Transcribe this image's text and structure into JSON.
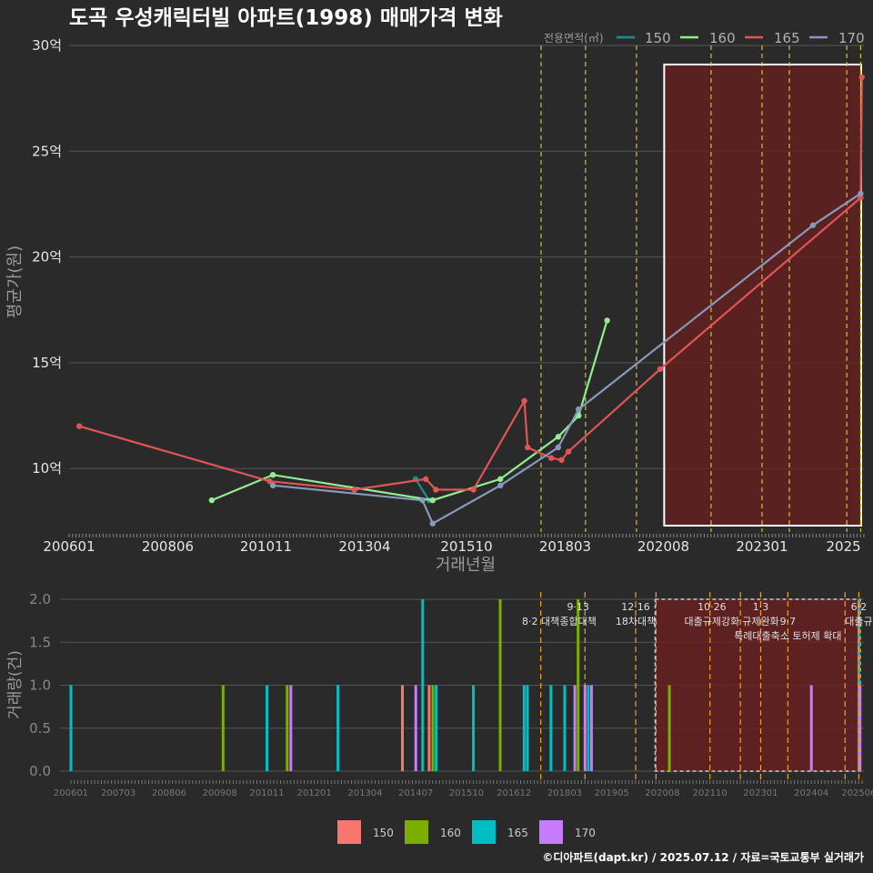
{
  "title": "도곡 우성캐릭터빌 아파트(1998) 매매가격 변화",
  "source": "©디아파트(dapt.kr) / 2025.07.12 / 자료=국토교통부 실거래가",
  "colors": {
    "bg": "#2a2a2a",
    "grid": "#555555",
    "text": "#e6e6e6",
    "muted": "#9a9a9a",
    "s150": "#f8766d",
    "s160": "#7cae00",
    "s165": "#00bfc4",
    "s170": "#c77cff",
    "line150": "#2a8a8a",
    "line160": "#90ee90",
    "line165": "#e05555",
    "line170": "#8899bb",
    "policy": "#d4c420",
    "policyLow": "#f0a020",
    "highlight": "#6b1f1f"
  },
  "chart_data": [
    {
      "type": "line",
      "title": "도곡 우성캐릭터빌 아파트(1998) 매매가격 변화",
      "xlabel": "거래년월",
      "ylabel": "평균가(원)",
      "xlim": [
        2006.0,
        2025.5
      ],
      "ylim": [
        7,
        30
      ],
      "yticks": [
        10,
        15,
        20,
        25,
        30
      ],
      "ytick_labels": [
        "10억",
        "15억",
        "20억",
        "25억",
        "30억"
      ],
      "xticks": [
        2006.0,
        2008.42,
        2010.83,
        2013.25,
        2015.75,
        2018.17,
        2020.58,
        2023.0,
        2025.0
      ],
      "xtick_labels": [
        "200601",
        "200806",
        "201011",
        "201304",
        "201510",
        "201803",
        "202008",
        "202301",
        "2025"
      ],
      "legend_title": "전용면적(㎡)",
      "highlight_range": [
        2020.6,
        2025.5
      ],
      "policy_lines": [
        2017.58,
        2018.67,
        2019.92,
        2021.75,
        2023.0,
        2023.67,
        2025.08,
        2025.42
      ],
      "series": [
        {
          "name": "150",
          "x": [
            2014.5,
            2014.83
          ],
          "y": [
            9.5,
            8.5
          ]
        },
        {
          "name": "160",
          "x": [
            2009.5,
            2011.0,
            2014.92,
            2016.58,
            2018.0,
            2018.5,
            2019.2
          ],
          "y": [
            8.5,
            9.7,
            8.5,
            9.5,
            11.5,
            12.5,
            17.0
          ]
        },
        {
          "name": "165",
          "x": [
            2006.25,
            2010.92,
            2013.0,
            2014.75,
            2015.0,
            2015.92,
            2017.17,
            2017.25,
            2017.83,
            2018.08,
            2018.25,
            2020.5,
            2025.42,
            2025.45
          ],
          "y": [
            12.0,
            9.4,
            9.0,
            9.5,
            9.0,
            9.0,
            13.2,
            11.0,
            10.5,
            10.4,
            10.8,
            14.7,
            22.8,
            28.5
          ]
        },
        {
          "name": "170",
          "x": [
            2011.0,
            2014.67,
            2014.92,
            2016.58,
            2018.0,
            2018.5,
            2024.25,
            2025.42
          ],
          "y": [
            9.2,
            8.5,
            7.4,
            9.2,
            11.0,
            12.8,
            21.5,
            23.0
          ]
        }
      ]
    },
    {
      "type": "bar",
      "ylabel": "거래량(건)",
      "xlim": [
        2006.0,
        2025.5
      ],
      "ylim": [
        0,
        2
      ],
      "yticks": [
        0,
        0.5,
        1,
        1.5,
        2
      ],
      "ytick_labels": [
        "0.0",
        "0.5",
        "1.0",
        "1.5",
        "2.0"
      ],
      "xticks": [
        2006.0,
        2007.17,
        2008.42,
        2009.67,
        2010.83,
        2012.0,
        2013.25,
        2014.5,
        2015.75,
        2016.92,
        2018.17,
        2019.33,
        2020.58,
        2021.75,
        2023.0,
        2024.25,
        2025.42
      ],
      "xtick_labels": [
        "200601",
        "200703",
        "200806",
        "200908",
        "201011",
        "201201",
        "201304",
        "201407",
        "201510",
        "201612",
        "201803",
        "201905",
        "202008",
        "202110",
        "202301",
        "202404",
        "202506"
      ],
      "legend": [
        "150",
        "160",
        "165",
        "170"
      ],
      "highlight_range": [
        2020.4,
        2025.5
      ],
      "policy_lines": [
        2017.58,
        2018.67,
        2019.92,
        2020.42,
        2021.75,
        2022.5,
        2023.0,
        2023.67,
        2025.08,
        2025.42
      ],
      "annotations": [
        {
          "text": "8·2 대책",
          "x": 2017.58,
          "row": 1
        },
        {
          "text": "9·13",
          "x": 2018.5,
          "row": 0
        },
        {
          "text": "종합대책",
          "x": 2018.5,
          "row": 1
        },
        {
          "text": "12·16",
          "x": 2019.92,
          "row": 0
        },
        {
          "text": "18차대책",
          "x": 2019.92,
          "row": 1
        },
        {
          "text": "10·26",
          "x": 2021.8,
          "row": 0
        },
        {
          "text": "대출규제강화",
          "x": 2021.8,
          "row": 1
        },
        {
          "text": "1·3",
          "x": 2023.0,
          "row": 0
        },
        {
          "text": "규제완화",
          "x": 2023.0,
          "row": 1
        },
        {
          "text": "9·7",
          "x": 2023.67,
          "row": 1
        },
        {
          "text": "특례대출축소 토허제 확대",
          "x": 2023.67,
          "row": 2
        },
        {
          "text": "6·2",
          "x": 2025.42,
          "row": 0
        },
        {
          "text": "대출규",
          "x": 2025.42,
          "row": 1
        }
      ],
      "bars": [
        {
          "x": 2006.0,
          "series": "165",
          "value": 1
        },
        {
          "x": 2009.75,
          "series": "160",
          "value": 1
        },
        {
          "x": 2010.83,
          "series": "165",
          "value": 1
        },
        {
          "x": 2011.33,
          "series": "160",
          "value": 1
        },
        {
          "x": 2011.42,
          "series": "170",
          "value": 1
        },
        {
          "x": 2012.58,
          "series": "165",
          "value": 1
        },
        {
          "x": 2014.17,
          "series": "150",
          "value": 1
        },
        {
          "x": 2014.5,
          "series": "170",
          "value": 1
        },
        {
          "x": 2014.67,
          "series": "165",
          "value": 2
        },
        {
          "x": 2014.83,
          "series": "150",
          "value": 1
        },
        {
          "x": 2014.92,
          "series": "160",
          "value": 1
        },
        {
          "x": 2015.0,
          "series": "165",
          "value": 1
        },
        {
          "x": 2015.92,
          "series": "165",
          "value": 1
        },
        {
          "x": 2016.58,
          "series": "160",
          "value": 2
        },
        {
          "x": 2017.17,
          "series": "165",
          "value": 1
        },
        {
          "x": 2017.25,
          "series": "165",
          "value": 1
        },
        {
          "x": 2017.83,
          "series": "165",
          "value": 1
        },
        {
          "x": 2018.17,
          "series": "165",
          "value": 1
        },
        {
          "x": 2018.42,
          "series": "170",
          "value": 1
        },
        {
          "x": 2018.5,
          "series": "160",
          "value": 2
        },
        {
          "x": 2018.67,
          "series": "170",
          "value": 1
        },
        {
          "x": 2018.75,
          "series": "165",
          "value": 1
        },
        {
          "x": 2018.83,
          "series": "170",
          "value": 1
        },
        {
          "x": 2020.75,
          "series": "160",
          "value": 1
        },
        {
          "x": 2024.25,
          "series": "170",
          "value": 1
        },
        {
          "x": 2025.42,
          "series": "165",
          "value": 2
        },
        {
          "x": 2025.45,
          "series": "170",
          "value": 1
        }
      ]
    }
  ]
}
